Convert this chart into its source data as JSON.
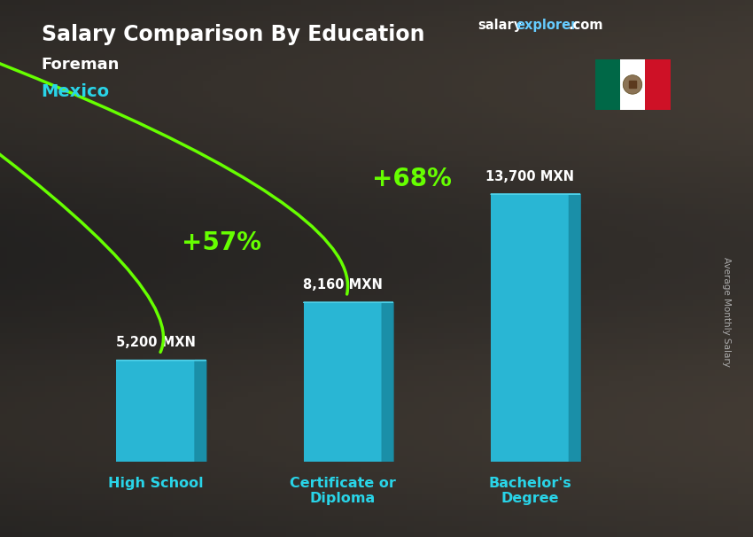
{
  "title": "Salary Comparison By Education",
  "subtitle_job": "Foreman",
  "subtitle_country": "Mexico",
  "watermark_salary": "salary",
  "watermark_explorer": "explorer",
  "watermark_com": ".com",
  "ylabel_rotated": "Average Monthly Salary",
  "categories": [
    "High School",
    "Certificate or\nDiploma",
    "Bachelor's\nDegree"
  ],
  "values": [
    5200,
    8160,
    13700
  ],
  "value_labels": [
    "5,200 MXN",
    "8,160 MXN",
    "13,700 MXN"
  ],
  "bar_color_front": "#29b6d4",
  "bar_color_right": "#1a8fa8",
  "bar_color_top": "#4dd0e8",
  "background_color": "#3a3a3a",
  "pct_labels": [
    "+57%",
    "+68%"
  ],
  "pct_color": "#66ff00",
  "arrow_color": "#66ff00",
  "title_color": "#ffffff",
  "subtitle_job_color": "#ffffff",
  "subtitle_country_color": "#29d4e8",
  "value_label_color": "#ffffff",
  "category_label_color": "#29d4e8",
  "watermark_salary_color": "#ffffff",
  "watermark_explorer_color": "#66ccff",
  "watermark_com_color": "#ffffff",
  "ylabel_color": "#aaaaaa",
  "bar_width": 0.42,
  "bar_depth": 0.06,
  "ylim_max": 16500,
  "figsize": [
    8.5,
    6.06
  ],
  "dpi": 100
}
